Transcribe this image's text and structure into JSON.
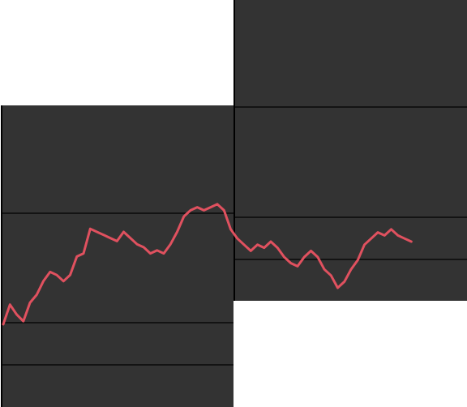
{
  "chart_data": {
    "type": "line",
    "title": "",
    "xlabel": "",
    "ylabel": "",
    "grid": true,
    "legend": "none",
    "colors": {
      "background": "#333333",
      "line": "#e0515f",
      "grid": "#000000",
      "page": "#ffffff"
    },
    "series": [
      {
        "values": [
          0.0,
          3.2,
          1.6,
          0.5,
          3.5,
          4.8,
          7.0,
          8.5,
          8.0,
          7.0,
          8.0,
          11.0,
          11.5,
          15.5,
          15.0,
          14.5,
          14.0,
          13.5,
          15.0,
          14.0,
          13.0,
          12.5,
          11.5,
          12.0,
          11.5,
          13.0,
          15.0,
          17.5,
          18.5,
          19.0,
          18.5,
          19.0,
          19.5,
          18.5,
          17.0,
          15.5,
          14.5,
          13.5,
          14.5,
          14.0,
          15.0,
          14.0,
          12.5,
          11.5,
          11.0,
          12.5,
          13.5,
          12.5,
          10.5,
          9.5,
          7.5,
          8.5,
          10.5,
          12.0,
          14.5,
          15.5,
          16.5,
          16.0,
          17.0,
          16.0,
          15.5,
          15.0
        ]
      }
    ]
  }
}
